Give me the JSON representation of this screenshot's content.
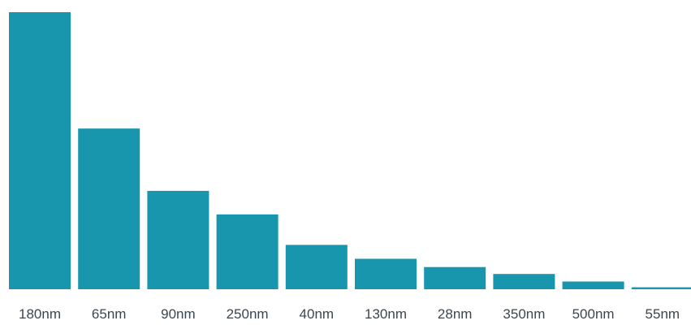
{
  "chart_data": {
    "type": "bar",
    "title": "",
    "xlabel": "",
    "ylabel": "",
    "categories": [
      "180nm",
      "65nm",
      "90nm",
      "250nm",
      "40nm",
      "130nm",
      "28nm",
      "350nm",
      "500nm",
      "55nm"
    ],
    "values": [
      100,
      58,
      35.5,
      27,
      16,
      11,
      8,
      5.5,
      2.8,
      0.7
    ],
    "ylim": [
      0,
      100
    ],
    "grid": false,
    "legend": "none",
    "bar_color": "#1896ae"
  }
}
